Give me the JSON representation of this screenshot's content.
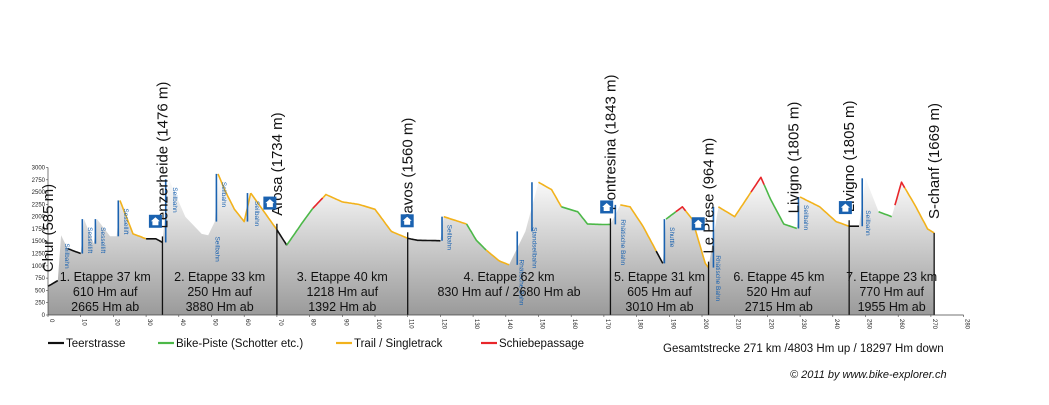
{
  "chart_data": {
    "type": "area",
    "title": "",
    "xlabel": "",
    "ylabel": "",
    "xlim": [
      0,
      280
    ],
    "ylim": [
      0,
      3000
    ],
    "x_ticks": [
      0,
      10,
      20,
      30,
      40,
      50,
      60,
      70,
      80,
      90,
      100,
      110,
      120,
      130,
      140,
      150,
      160,
      170,
      180,
      190,
      200,
      210,
      220,
      230,
      240,
      250,
      260,
      270,
      280
    ],
    "y_ticks": [
      0,
      250,
      500,
      750,
      1000,
      1250,
      1500,
      1750,
      2000,
      2250,
      2500,
      2750,
      3000
    ],
    "profile": [
      [
        0,
        585
      ],
      [
        3,
        700
      ],
      [
        4,
        1620
      ],
      [
        6,
        1350
      ],
      [
        10,
        1250
      ],
      [
        11,
        1950
      ],
      [
        14,
        1450
      ],
      [
        15,
        1950
      ],
      [
        19,
        1600
      ],
      [
        21,
        1600
      ],
      [
        22,
        2330
      ],
      [
        26,
        1650
      ],
      [
        30,
        1550
      ],
      [
        33,
        1550
      ],
      [
        35,
        1476
      ],
      [
        37,
        2760
      ],
      [
        42,
        2000
      ],
      [
        47,
        1650
      ],
      [
        49,
        1620
      ],
      [
        51,
        1900
      ],
      [
        52,
        2870
      ],
      [
        54,
        2550
      ],
      [
        57,
        2150
      ],
      [
        60,
        1900
      ],
      [
        62,
        2480
      ],
      [
        65,
        2200
      ],
      [
        70,
        1734
      ],
      [
        73,
        1420
      ],
      [
        78,
        1900
      ],
      [
        81,
        2170
      ],
      [
        85,
        2450
      ],
      [
        90,
        2300
      ],
      [
        95,
        2250
      ],
      [
        100,
        2150
      ],
      [
        105,
        1700
      ],
      [
        110,
        1560
      ],
      [
        113,
        1520
      ],
      [
        120,
        1510
      ],
      [
        121,
        2000
      ],
      [
        128,
        1850
      ],
      [
        131,
        1520
      ],
      [
        134,
        1320
      ],
      [
        138,
        1100
      ],
      [
        141,
        1020
      ],
      [
        146,
        1700
      ],
      [
        150,
        2700
      ],
      [
        154,
        2550
      ],
      [
        157,
        2200
      ],
      [
        162,
        2100
      ],
      [
        165,
        1850
      ],
      [
        170,
        1840
      ],
      [
        172,
        1843
      ],
      [
        175,
        2240
      ],
      [
        178,
        2200
      ],
      [
        182,
        1800
      ],
      [
        186,
        1300
      ],
      [
        188,
        1050
      ],
      [
        189,
        1950
      ],
      [
        194,
        2200
      ],
      [
        197,
        1950
      ],
      [
        199,
        1500
      ],
      [
        201,
        1050
      ],
      [
        202,
        964
      ],
      [
        205,
        2200
      ],
      [
        210,
        2000
      ],
      [
        215,
        2500
      ],
      [
        218,
        2800
      ],
      [
        221,
        2350
      ],
      [
        225,
        1850
      ],
      [
        229,
        1760
      ],
      [
        230,
        2400
      ],
      [
        236,
        2200
      ],
      [
        241,
        1900
      ],
      [
        245,
        1805
      ],
      [
        248,
        1805
      ],
      [
        250,
        2780
      ],
      [
        254,
        2100
      ],
      [
        258,
        2000
      ],
      [
        261,
        2700
      ],
      [
        265,
        2250
      ],
      [
        269,
        1750
      ],
      [
        271,
        1669
      ]
    ],
    "segments": [
      {
        "type": "Teerstrasse",
        "x0": 0,
        "x1": 3
      },
      {
        "type": "Teerstrasse",
        "x0": 6,
        "x1": 10
      },
      {
        "type": "Trail / Singletrack",
        "x0": 22,
        "x1": 30
      },
      {
        "type": "Teerstrasse",
        "x0": 30,
        "x1": 35
      },
      {
        "type": "Trail / Singletrack",
        "x0": 52,
        "x1": 62
      },
      {
        "type": "Trail / Singletrack",
        "x0": 62,
        "x1": 70
      },
      {
        "type": "Teerstrasse",
        "x0": 70,
        "x1": 73
      },
      {
        "type": "Bike-Piste (Schotter etc.)",
        "x0": 73,
        "x1": 81
      },
      {
        "type": "Schiebepassage",
        "x0": 81,
        "x1": 84
      },
      {
        "type": "Trail / Singletrack",
        "x0": 84,
        "x1": 110
      },
      {
        "type": "Teerstrasse",
        "x0": 110,
        "x1": 120
      },
      {
        "type": "Trail / Singletrack",
        "x0": 121,
        "x1": 128
      },
      {
        "type": "Bike-Piste (Schotter etc.)",
        "x0": 128,
        "x1": 134
      },
      {
        "type": "Trail / Singletrack",
        "x0": 134,
        "x1": 141
      },
      {
        "type": "Trail / Singletrack",
        "x0": 150,
        "x1": 157
      },
      {
        "type": "Bike-Piste (Schotter etc.)",
        "x0": 157,
        "x1": 172
      },
      {
        "type": "Trail / Singletrack",
        "x0": 175,
        "x1": 186
      },
      {
        "type": "Teerstrasse",
        "x0": 186,
        "x1": 188
      },
      {
        "type": "Bike-Piste (Schotter etc.)",
        "x0": 189,
        "x1": 192
      },
      {
        "type": "Schiebepassage",
        "x0": 192,
        "x1": 195
      },
      {
        "type": "Trail / Singletrack",
        "x0": 195,
        "x1": 202
      },
      {
        "type": "Trail / Singletrack",
        "x0": 205,
        "x1": 215
      },
      {
        "type": "Schiebepassage",
        "x0": 215,
        "x1": 219
      },
      {
        "type": "Bike-Piste (Schotter etc.)",
        "x0": 219,
        "x1": 229
      },
      {
        "type": "Trail / Singletrack",
        "x0": 230,
        "x1": 245
      },
      {
        "type": "Teerstrasse",
        "x0": 245,
        "x1": 248
      },
      {
        "type": "Bike-Piste (Schotter etc.)",
        "x0": 254,
        "x1": 258
      },
      {
        "type": "Schiebepassage",
        "x0": 259,
        "x1": 262
      },
      {
        "type": "Trail / Singletrack",
        "x0": 262,
        "x1": 271
      }
    ],
    "lifts": [
      {
        "label": "Sessellift",
        "x0": 10,
        "x1": 11
      },
      {
        "label": "Sessellift",
        "x0": 14,
        "x1": 15
      },
      {
        "label": "Sessellift",
        "x0": 21,
        "x1": 22
      },
      {
        "label": "Sessellift",
        "x0": 35,
        "x1": 35
      },
      {
        "label": "Seilbahn",
        "x0": 35,
        "x1": 37
      },
      {
        "label": "Seilbahn",
        "x0": 51,
        "x1": 52
      },
      {
        "label": "Seilbahn",
        "x0": 60,
        "x1": 62
      },
      {
        "label": "Seilbahn",
        "x0": 120,
        "x1": 121
      },
      {
        "label": "Standseilbahn",
        "x0": 146,
        "x1": 150
      },
      {
        "label": "Rhätische Bahn",
        "x0": 141,
        "x1": 146
      },
      {
        "label": "Rhätische Bahn",
        "x0": 172,
        "x1": 175
      },
      {
        "label": "Shuttle",
        "x0": 188,
        "x1": 189
      },
      {
        "label": "Rhätische Bahn",
        "x0": 202,
        "x1": 205
      },
      {
        "label": "Seilbahn",
        "x0": 229,
        "x1": 230
      },
      {
        "label": "Seilbahn",
        "x0": 248,
        "x1": 250
      }
    ],
    "lift_labels": [
      {
        "text": "Seilbahn",
        "x": 4
      },
      {
        "text": "Sessellift",
        "x": 11
      },
      {
        "text": "Sessellift",
        "x": 15
      },
      {
        "text": "Sessellift",
        "x": 22
      },
      {
        "text": "Seilbahn",
        "x": 37
      },
      {
        "text": "Seilbahn",
        "x": 50
      },
      {
        "text": "Seilbahn",
        "x": 52
      },
      {
        "text": "Seilbahn",
        "x": 62
      },
      {
        "text": "Seilbahn",
        "x": 121
      },
      {
        "text": "Rhätische Bahn",
        "x": 143
      },
      {
        "text": "Standseilbahn",
        "x": 147
      },
      {
        "text": "Rhätische Bahn",
        "x": 174
      },
      {
        "text": "Shuttle",
        "x": 189
      },
      {
        "text": "Rhätische Bahn",
        "x": 203
      },
      {
        "text": "Seilbahn",
        "x": 230
      },
      {
        "text": "Seilbahn",
        "x": 249
      }
    ],
    "places": [
      {
        "name": "Chur (585 m)",
        "x": 0
      },
      {
        "name": "Lenzerheide (1476 m)",
        "x": 35
      },
      {
        "name": "Arosa (1734 m)",
        "x": 70
      },
      {
        "name": "Davos (1560 m)",
        "x": 110
      },
      {
        "name": "Pontresina (1843 m)",
        "x": 172
      },
      {
        "name": "Le Prese (964 m)",
        "x": 202
      },
      {
        "name": "Livigno (1805 m)",
        "x": 228
      },
      {
        "name": "Livigno (1805 m)",
        "x": 245
      },
      {
        "name": "S-chanf (1669 m)",
        "x": 271
      }
    ],
    "stage_boundaries": [
      35,
      70,
      110,
      172,
      202,
      245
    ],
    "end_marker": 271,
    "stages": [
      {
        "label": "1. Etappe 37 km",
        "up": "610 Hm auf",
        "down": "2665 Hm ab",
        "x0": 0,
        "x1": 35
      },
      {
        "label": "2. Etappe 33 km",
        "up": "250 Hm auf",
        "down": "3880 Hm ab",
        "x0": 35,
        "x1": 70
      },
      {
        "label": "3. Etappe 40 km",
        "up": "1218 Hm auf",
        "down": "1392 Hm ab",
        "x0": 70,
        "x1": 110
      },
      {
        "label": "4. Etappe 62 km",
        "up": "830 Hm auf  / 2680 Hm ab",
        "down": "",
        "x0": 110,
        "x1": 172
      },
      {
        "label": "5. Etappe 31 km",
        "up": "605 Hm auf",
        "down": "3010 Hm ab",
        "x0": 172,
        "x1": 202
      },
      {
        "label": "6. Etappe 45 km",
        "up": "520 Hm auf",
        "down": "2715 Hm ab",
        "x0": 202,
        "x1": 245
      },
      {
        "label": "7. Etappe 23 km",
        "up": "770 Hm auf",
        "down": "1955 Hm ab",
        "x0": 245,
        "x1": 271
      }
    ],
    "huts": [
      33,
      68,
      110,
      171,
      199,
      244
    ],
    "legend": [
      {
        "label": "Teerstrasse",
        "color": "#111111"
      },
      {
        "label": "Bike-Piste (Schotter etc.)",
        "color": "#4cb848"
      },
      {
        "label": "Trail / Singletrack",
        "color": "#f2b21c"
      },
      {
        "label": "Schiebepassage",
        "color": "#e8262a"
      }
    ],
    "legend_position": "bottom",
    "total": "Gesamtstrecke 271 km /4803 Hm up / 18297 Hm down",
    "copyright": "© 2011 by www.bike-explorer.ch",
    "colors": {
      "fill_top": "#ffffff",
      "fill_bottom": "#9a9a9a",
      "lift": "#1a62b0",
      "stage_line": "#111111",
      "hut": "#1a62b0"
    }
  }
}
